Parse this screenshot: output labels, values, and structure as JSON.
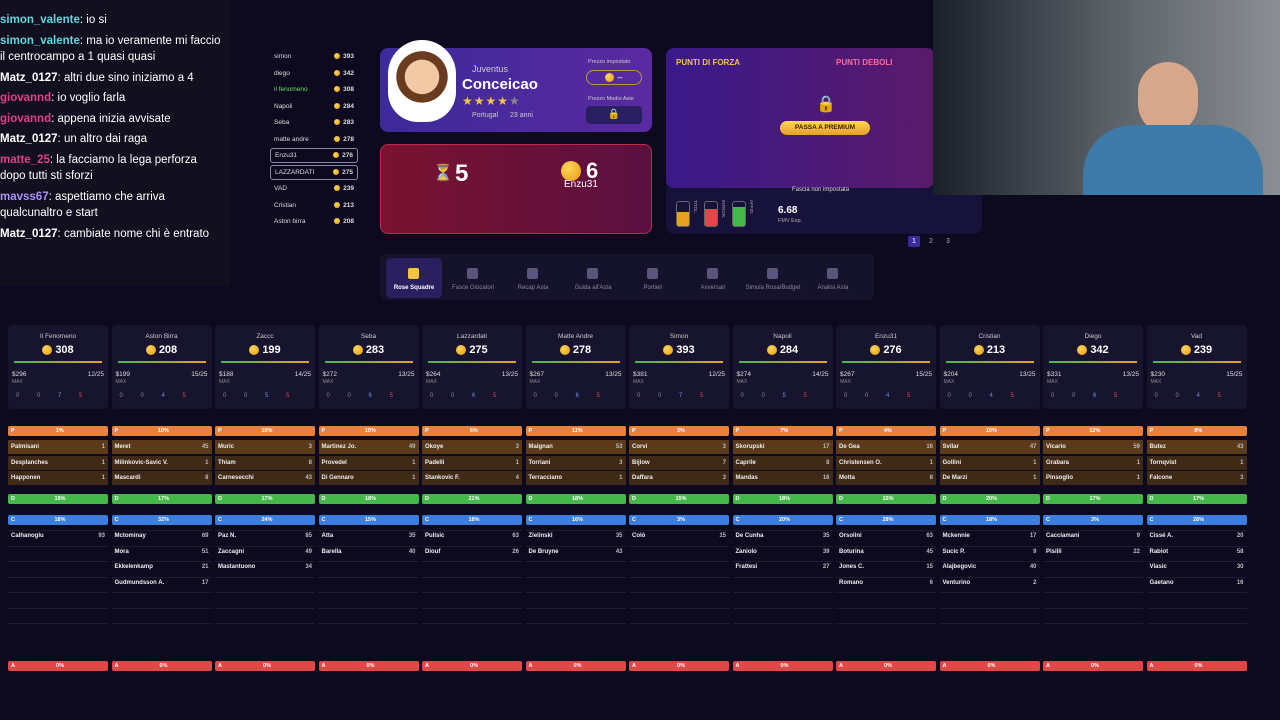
{
  "chat": [
    {
      "user": "simon_valente",
      "text": "io si",
      "color": "#5ed6e0"
    },
    {
      "user": "simon_valente",
      "text": "ma io veramente mi faccio il centrocampo a 1 quasi quasi",
      "color": "#5ed6e0"
    },
    {
      "user": "Matz_0127",
      "text": "altri due sino iniziamo a 4",
      "color": "#ffffff"
    },
    {
      "user": "giovannd",
      "text": "io voglio farla",
      "color": "#e0408a"
    },
    {
      "user": "giovannd",
      "text": "appena inizia avvisate",
      "color": "#e0408a"
    },
    {
      "user": "Matz_0127",
      "text": "un altro dai raga",
      "color": "#ffffff"
    },
    {
      "user": "matte_25",
      "text": "la facciamo la lega perforza dopo tutti sti sforzi",
      "color": "#e0408a"
    },
    {
      "user": "mavss67",
      "text": "aspettiamo che arriva qualcunaltro e start",
      "color": "#a890ff"
    },
    {
      "user": "Matz_0127",
      "text": "cambiate nome chi è entrato",
      "color": "#ffffff"
    }
  ],
  "ranking": [
    {
      "name": "simon",
      "coins": 393
    },
    {
      "name": "diego",
      "coins": 342
    },
    {
      "name": "il fenomeno",
      "coins": 308
    },
    {
      "name": "Napoli",
      "coins": 284
    },
    {
      "name": "Seba",
      "coins": 283
    },
    {
      "name": "matte andre",
      "coins": 278
    },
    {
      "name": "Enzu31",
      "coins": 276
    },
    {
      "name": "LAZZARDATI",
      "coins": 275
    },
    {
      "name": "VAD",
      "coins": 239
    },
    {
      "name": "Cristian",
      "coins": 213
    },
    {
      "name": "Aston birra",
      "coins": 208
    }
  ],
  "player": {
    "team": "Juventus",
    "name": "Conceicao",
    "country": "Portugal",
    "age": "23 anni",
    "price_label": "Prezzo impostato",
    "price": "–",
    "avg_label": "Prezzo Medio Aste"
  },
  "auction": {
    "timer": 5,
    "bid": 6,
    "bidder": "Enzu31"
  },
  "analysis": {
    "strengths": "PUNTI DI FORZA",
    "weaknesses": "PUNTI DEBOLI",
    "premium": "PASSA A PREMIUM",
    "band": "Fascia non impostata",
    "bars": [
      "TITOL.",
      "INTEGR.",
      "AFFID."
    ],
    "fmv": "6.68",
    "fmv_label": "FMV Exp."
  },
  "pages": [
    1,
    2,
    3
  ],
  "tabs": [
    "Rose Squadre",
    "Fasce Giocatori",
    "Recap Asta",
    "Guida all'Asta",
    "Portieri",
    "Avversari",
    "Simula Rosa/Budget",
    "Analisi Asta"
  ],
  "max_label": "MAX",
  "roles": [
    "P",
    "D",
    "C",
    "A"
  ],
  "teams": [
    {
      "name": "Il Fenomeno",
      "coins": 308,
      "max": "$296",
      "slots": "12/25",
      "counts": [
        0,
        0,
        7,
        5
      ],
      "pct": [
        "1%",
        "19%",
        "18%",
        "0%"
      ],
      "P": [
        {
          "name": "Palmisani",
          "price": 1
        },
        {
          "name": "Desplanches",
          "price": 1
        },
        {
          "name": "Happonen",
          "price": 1
        }
      ],
      "C": [
        {
          "name": "Calhanoglu",
          "price": 93
        }
      ]
    },
    {
      "name": "Aston Birra",
      "coins": 208,
      "max": "$199",
      "slots": "15/25",
      "counts": [
        0,
        0,
        4,
        5
      ],
      "pct": [
        "10%",
        "17%",
        "32%",
        "0%"
      ],
      "P": [
        {
          "name": "Meret",
          "price": 45
        },
        {
          "name": "Milinkovic-Savic V.",
          "price": 1
        },
        {
          "name": "Mascardi",
          "price": 8
        }
      ],
      "C": [
        {
          "name": "Mctominay",
          "price": 69
        },
        {
          "name": "Mora",
          "price": 51
        },
        {
          "name": "Ekkelenkamp",
          "price": 21
        },
        {
          "name": "Gudmundsson A.",
          "price": 17
        }
      ]
    },
    {
      "name": "Zaccc",
      "coins": 199,
      "max": "$188",
      "slots": "14/25",
      "counts": [
        0,
        0,
        5,
        5
      ],
      "pct": [
        "10%",
        "17%",
        "24%",
        "0%"
      ],
      "P": [
        {
          "name": "Muric",
          "price": 3
        },
        {
          "name": "Thiam",
          "price": 8
        },
        {
          "name": "Carnesecchi",
          "price": 43
        }
      ],
      "C": [
        {
          "name": "Paz N.",
          "price": 85
        },
        {
          "name": "Zaccagni",
          "price": 49
        },
        {
          "name": "Mastantuono",
          "price": 34
        }
      ]
    },
    {
      "name": "Seba",
      "coins": 283,
      "max": "$272",
      "slots": "13/25",
      "counts": [
        0,
        0,
        6,
        5
      ],
      "pct": [
        "10%",
        "18%",
        "15%",
        "0%"
      ],
      "P": [
        {
          "name": "Martinez Jo.",
          "price": 49
        },
        {
          "name": "Provedel",
          "price": 1
        },
        {
          "name": "Di Gennaro",
          "price": 1
        }
      ],
      "C": [
        {
          "name": "Atta",
          "price": 35
        },
        {
          "name": "Barella",
          "price": 40
        }
      ]
    },
    {
      "name": "Lazzardati",
      "coins": 275,
      "max": "$264",
      "slots": "13/25",
      "counts": [
        0,
        0,
        6,
        5
      ],
      "pct": [
        "6%",
        "21%",
        "18%",
        "0%"
      ],
      "P": [
        {
          "name": "Okoye",
          "price": 3
        },
        {
          "name": "Padelli",
          "price": 1
        },
        {
          "name": "Stankovic F.",
          "price": 4
        }
      ],
      "C": [
        {
          "name": "Pulisic",
          "price": 63
        },
        {
          "name": "Diouf",
          "price": 26
        }
      ]
    },
    {
      "name": "Matte Andre",
      "coins": 278,
      "max": "$267",
      "slots": "13/25",
      "counts": [
        0,
        0,
        6,
        5
      ],
      "pct": [
        "11%",
        "18%",
        "16%",
        "0%"
      ],
      "P": [
        {
          "name": "Maignan",
          "price": 53
        },
        {
          "name": "Torriani",
          "price": 3
        },
        {
          "name": "Terracciano",
          "price": 1
        }
      ],
      "C": [
        {
          "name": "Zielinski",
          "price": 35
        },
        {
          "name": "De Bruyne",
          "price": 43
        }
      ]
    },
    {
      "name": "Simon",
      "coins": 393,
      "max": "$381",
      "slots": "12/25",
      "counts": [
        0,
        0,
        7,
        5
      ],
      "pct": [
        "3%",
        "15%",
        "3%",
        "0%"
      ],
      "P": [
        {
          "name": "Corvi",
          "price": 3
        },
        {
          "name": "Bijlow",
          "price": 7
        },
        {
          "name": "Daffara",
          "price": 3
        }
      ],
      "C": [
        {
          "name": "Colò",
          "price": 15
        }
      ]
    },
    {
      "name": "Napoli",
      "coins": 284,
      "max": "$274",
      "slots": "14/25",
      "counts": [
        0,
        0,
        5,
        5
      ],
      "pct": [
        "7%",
        "18%",
        "20%",
        "0%"
      ],
      "P": [
        {
          "name": "Skorupski",
          "price": 17
        },
        {
          "name": "Caprile",
          "price": 8
        },
        {
          "name": "Mandas",
          "price": 16
        }
      ],
      "C": [
        {
          "name": "De Cunha",
          "price": 35
        },
        {
          "name": "Zaniolo",
          "price": 39
        },
        {
          "name": "Frattesi",
          "price": 27
        }
      ]
    },
    {
      "name": "Enzu31",
      "coins": 276,
      "max": "$267",
      "slots": "15/25",
      "counts": [
        0,
        0,
        4,
        5
      ],
      "pct": [
        "4%",
        "15%",
        "28%",
        "0%"
      ],
      "P": [
        {
          "name": "De Gea",
          "price": 16
        },
        {
          "name": "Christensen O.",
          "price": 1
        },
        {
          "name": "Motta",
          "price": 8
        }
      ],
      "C": [
        {
          "name": "Orsolini",
          "price": 63
        },
        {
          "name": "Boturina",
          "price": 45
        },
        {
          "name": "Jones C.",
          "price": 15
        },
        {
          "name": "Romano",
          "price": 6
        }
      ]
    },
    {
      "name": "Cristian",
      "coins": 213,
      "max": "$204",
      "slots": "13/25",
      "counts": [
        0,
        0,
        4,
        5
      ],
      "pct": [
        "10%",
        "20%",
        "18%",
        "0%"
      ],
      "P": [
        {
          "name": "Svilar",
          "price": 47
        },
        {
          "name": "Gollini",
          "price": 1
        },
        {
          "name": "De Marzi",
          "price": 1
        }
      ],
      "C": [
        {
          "name": "Mckennie",
          "price": 17
        },
        {
          "name": "Sucic P.",
          "price": 9
        },
        {
          "name": "Alajbegovic",
          "price": 40
        },
        {
          "name": "Venturino",
          "price": 2
        }
      ]
    },
    {
      "name": "Diego",
      "coins": 342,
      "max": "$331",
      "slots": "13/25",
      "counts": [
        0,
        0,
        6,
        5
      ],
      "pct": [
        "12%",
        "17%",
        "3%",
        "0%"
      ],
      "P": [
        {
          "name": "Vicario",
          "price": 59
        },
        {
          "name": "Grabara",
          "price": 1
        },
        {
          "name": "Pinsoglio",
          "price": 1
        }
      ],
      "C": [
        {
          "name": "Cacciamani",
          "price": 9
        },
        {
          "name": "Pisilli",
          "price": 22
        }
      ]
    },
    {
      "name": "Vad",
      "coins": 239,
      "max": "$230",
      "slots": "15/25",
      "counts": [
        0,
        0,
        4,
        5
      ],
      "pct": [
        "8%",
        "17%",
        "28%",
        "0%"
      ],
      "P": [
        {
          "name": "Butez",
          "price": 43
        },
        {
          "name": "Tornqvist",
          "price": 1
        },
        {
          "name": "Falcone",
          "price": 3
        }
      ],
      "C": [
        {
          "name": "Cissé A.",
          "price": 20
        },
        {
          "name": "Rabiot",
          "price": 58
        },
        {
          "name": "Vlasic",
          "price": 30
        },
        {
          "name": "Gaetano",
          "price": 16
        }
      ]
    }
  ],
  "role_colors": [
    "#e8823a",
    "#45b84a",
    "#3a7fe0",
    "#e04848"
  ]
}
